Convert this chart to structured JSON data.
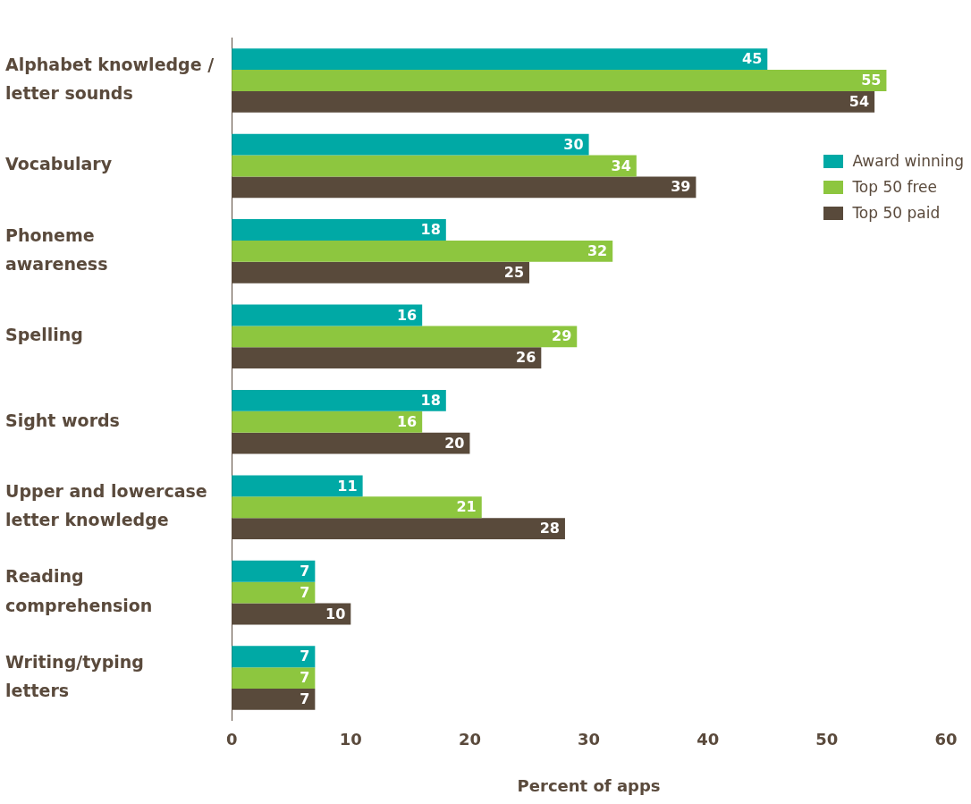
{
  "chart_data": {
    "type": "bar",
    "orientation": "horizontal",
    "xlabel": "Percent of apps",
    "categories": [
      "Alphabet knowledge /\nletter sounds",
      "Vocabulary",
      "Phoneme\nawareness",
      "Spelling",
      "Sight words",
      "Upper and lowercase\nletter knowledge",
      "Reading\ncomprehension",
      "Writing/typing\nletters"
    ],
    "series": [
      {
        "name": "Award winning",
        "color": "#00a9a5",
        "values": [
          45,
          30,
          18,
          16,
          18,
          11,
          7,
          7
        ]
      },
      {
        "name": "Top 50 free",
        "color": "#8dc63f",
        "values": [
          55,
          34,
          32,
          29,
          16,
          21,
          7,
          7
        ]
      },
      {
        "name": "Top 50 paid",
        "color": "#594a3b",
        "values": [
          54,
          39,
          25,
          26,
          20,
          28,
          10,
          7
        ]
      }
    ],
    "xlim": [
      0,
      60
    ],
    "xticks": [
      0,
      10,
      20,
      30,
      40,
      50,
      60
    ],
    "grid": false,
    "legend": "top right",
    "data_labels": true
  }
}
